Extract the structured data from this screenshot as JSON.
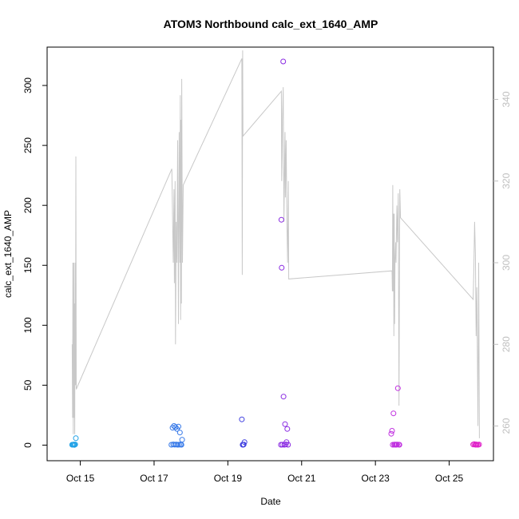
{
  "chart_data": {
    "type": "scatter",
    "title": "ATOM3 Northbound calc_ext_1640_AMP",
    "xlabel": "Date",
    "ylabel": "calc_ext_1640_AMP",
    "x_ticks": [
      "Oct 15",
      "Oct 17",
      "Oct 19",
      "Oct 21",
      "Oct 23",
      "Oct 25"
    ],
    "y_ticks": [
      0,
      50,
      100,
      150,
      200,
      250,
      300
    ],
    "y2_ticks": [
      260,
      280,
      300,
      320,
      340
    ],
    "xlim_days": [
      14.1,
      26.2
    ],
    "ylim": [
      -13,
      332
    ],
    "y2lim": [
      251.5,
      352.8
    ],
    "grid": false,
    "colors": {
      "line": "#c8c8c8",
      "axis": "#000000",
      "right_axis": "#bfbfbf"
    },
    "secondary_series": {
      "style": "line",
      "points": [
        [
          14.78,
          280
        ],
        [
          14.79,
          262
        ],
        [
          14.8,
          300
        ],
        [
          14.81,
          258
        ],
        [
          14.82,
          300
        ],
        [
          14.83,
          262
        ],
        [
          14.84,
          290
        ],
        [
          14.85,
          258
        ],
        [
          14.86,
          300
        ],
        [
          14.87,
          270
        ],
        [
          14.88,
          326
        ],
        [
          14.89,
          269
        ],
        [
          17.48,
          323
        ],
        [
          17.52,
          300
        ],
        [
          17.54,
          318
        ],
        [
          17.55,
          295
        ],
        [
          17.57,
          320
        ],
        [
          17.58,
          280
        ],
        [
          17.6,
          310
        ],
        [
          17.62,
          300
        ],
        [
          17.64,
          330
        ],
        [
          17.66,
          285
        ],
        [
          17.68,
          332
        ],
        [
          17.7,
          300
        ],
        [
          17.71,
          341
        ],
        [
          17.72,
          286
        ],
        [
          17.73,
          335
        ],
        [
          17.74,
          290
        ],
        [
          17.75,
          345
        ],
        [
          17.77,
          300
        ],
        [
          17.79,
          319
        ],
        [
          19.38,
          350
        ],
        [
          19.39,
          297
        ],
        [
          19.4,
          352
        ],
        [
          19.41,
          331
        ],
        [
          20.45,
          342
        ],
        [
          20.46,
          320
        ],
        [
          20.47,
          326
        ],
        [
          20.48,
          335
        ],
        [
          20.5,
          343
        ],
        [
          20.52,
          310
        ],
        [
          20.53,
          319
        ],
        [
          20.55,
          332
        ],
        [
          20.56,
          316
        ],
        [
          20.58,
          330
        ],
        [
          20.6,
          310
        ],
        [
          20.62,
          300
        ],
        [
          20.64,
          320
        ],
        [
          20.65,
          296
        ],
        [
          23.45,
          298
        ],
        [
          23.46,
          293
        ],
        [
          23.47,
          319
        ],
        [
          23.48,
          293
        ],
        [
          23.49,
          312
        ],
        [
          23.5,
          282
        ],
        [
          23.51,
          312
        ],
        [
          23.52,
          285
        ],
        [
          23.53,
          300
        ],
        [
          23.55,
          305
        ],
        [
          23.56,
          300
        ],
        [
          23.58,
          314
        ],
        [
          23.6,
          305
        ],
        [
          23.62,
          317
        ],
        [
          23.64,
          265
        ],
        [
          23.66,
          318
        ],
        [
          23.68,
          311
        ],
        [
          25.65,
          291
        ],
        [
          25.67,
          299
        ],
        [
          25.69,
          310
        ],
        [
          25.71,
          302
        ],
        [
          25.73,
          282
        ],
        [
          25.75,
          294
        ],
        [
          25.78,
          260
        ],
        [
          25.8,
          300
        ],
        [
          25.82,
          257
        ]
      ]
    },
    "series": [
      {
        "color": "#1ca0e6",
        "points": [
          [
            14.78,
            0.3
          ],
          [
            14.8,
            0.4
          ],
          [
            14.82,
            0.5
          ],
          [
            14.84,
            0.2
          ],
          [
            14.86,
            0.6
          ],
          [
            14.88,
            5.8
          ]
        ]
      },
      {
        "color": "#3578e8",
        "points": [
          [
            17.47,
            0.3
          ],
          [
            17.5,
            14.5
          ],
          [
            17.52,
            0.6
          ],
          [
            17.54,
            16
          ],
          [
            17.56,
            0.4
          ],
          [
            17.58,
            15
          ],
          [
            17.6,
            0.5
          ],
          [
            17.62,
            13.5
          ],
          [
            17.64,
            0.3
          ],
          [
            17.66,
            15.5
          ],
          [
            17.68,
            0.4
          ],
          [
            17.7,
            10.5
          ],
          [
            17.72,
            0.5
          ],
          [
            17.74,
            0.3
          ],
          [
            17.76,
            4.5
          ]
        ]
      },
      {
        "color": "#4040e0",
        "points": [
          [
            19.38,
            21.5
          ],
          [
            19.4,
            0.3
          ],
          [
            19.42,
            0.4
          ],
          [
            19.43,
            0.5
          ],
          [
            19.45,
            2.5
          ]
        ]
      },
      {
        "color": "#8a2be2",
        "points": [
          [
            20.44,
            0.3
          ],
          [
            20.45,
            188
          ],
          [
            20.46,
            148
          ],
          [
            20.48,
            0.4
          ],
          [
            20.5,
            320
          ],
          [
            20.51,
            40.5
          ],
          [
            20.53,
            0.3
          ],
          [
            20.55,
            17.5
          ],
          [
            20.57,
            0.6
          ],
          [
            20.59,
            2.5
          ],
          [
            20.61,
            13.5
          ],
          [
            20.63,
            0.3
          ]
        ]
      },
      {
        "color": "#c030e0",
        "points": [
          [
            23.43,
            9.5
          ],
          [
            23.45,
            12
          ],
          [
            23.47,
            0.3
          ],
          [
            23.49,
            26.5
          ],
          [
            23.51,
            0.4
          ],
          [
            23.53,
            0.5
          ],
          [
            23.55,
            0.3
          ],
          [
            23.57,
            0.4
          ],
          [
            23.59,
            0.5
          ],
          [
            23.61,
            47.5
          ],
          [
            23.63,
            0.4
          ],
          [
            23.65,
            0.3
          ]
        ]
      },
      {
        "color": "#e020c8",
        "points": [
          [
            25.65,
            0.5
          ],
          [
            25.68,
            0.8
          ],
          [
            25.71,
            0.3
          ],
          [
            25.73,
            0.6
          ],
          [
            25.75,
            0.4
          ],
          [
            25.78,
            0.3
          ],
          [
            25.81,
            0.5
          ]
        ]
      }
    ]
  }
}
